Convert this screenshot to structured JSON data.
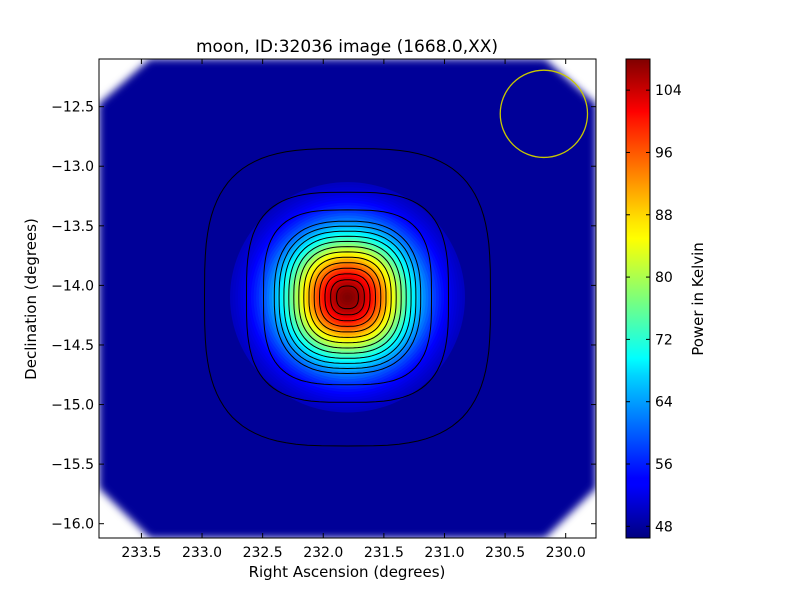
{
  "chart_data": {
    "type": "heatmap",
    "title": "moon, ID:32036 image (1668.0,XX)",
    "xlabel": "Right Ascension (degrees)",
    "ylabel": "Declination (degrees)",
    "colorbar_label": "Power in Kelvin",
    "colormap": "jet",
    "x_inverted": true,
    "xlim": [
      233.85,
      229.75
    ],
    "ylim": [
      -16.12,
      -12.1
    ],
    "x_ticks": [
      233.5,
      233.0,
      232.5,
      232.0,
      231.5,
      231.0,
      230.5,
      230.0
    ],
    "x_tick_labels": [
      "233.5",
      "233.0",
      "232.5",
      "232.0",
      "231.5",
      "231.0",
      "230.5",
      "230.0"
    ],
    "y_ticks": [
      -12.5,
      -13.0,
      -13.5,
      -14.0,
      -14.5,
      -15.0,
      -15.5,
      -16.0
    ],
    "y_tick_labels": [
      "−12.5",
      "−13.0",
      "−13.5",
      "−14.0",
      "−14.5",
      "−15.0",
      "−15.5",
      "−16.0"
    ],
    "colorbar_range": [
      46.5,
      108
    ],
    "colorbar_ticks": [
      48,
      56,
      64,
      72,
      80,
      88,
      96,
      104
    ],
    "colorbar_tick_labels": [
      "48",
      "56",
      "64",
      "72",
      "80",
      "88",
      "96",
      "104"
    ],
    "background_level": 48,
    "source": {
      "ra": 231.8,
      "dec": -14.1,
      "peak": 108
    },
    "beam_circle": {
      "ra": 230.18,
      "dec": -12.56,
      "radius_deg": 0.36,
      "color": "#c8c800"
    },
    "contour_count": 16,
    "grid": false
  }
}
